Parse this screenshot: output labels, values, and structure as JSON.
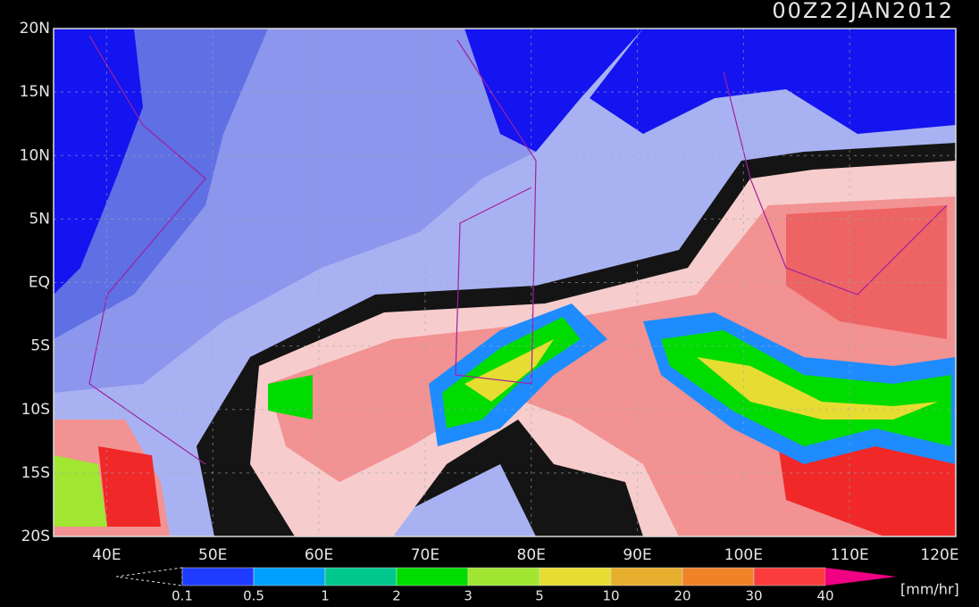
{
  "header": {
    "timestamp": "00Z22JAN2012"
  },
  "axes": {
    "lat_labels": [
      "20N",
      "15N",
      "10N",
      "5N",
      "EQ",
      "5S",
      "10S",
      "15S",
      "20S"
    ],
    "lon_labels": [
      "40E",
      "50E",
      "60E",
      "70E",
      "80E",
      "90E",
      "100E",
      "110E",
      "120E"
    ]
  },
  "legend": {
    "levels": [
      "0.1",
      "0.5",
      "1",
      "2",
      "3",
      "5",
      "10",
      "20",
      "30",
      "40"
    ],
    "colors": [
      "#1e3cff",
      "#00a0ff",
      "#00c88c",
      "#00dc00",
      "#a0e632",
      "#e6dc32",
      "#e6af2d",
      "#f08228",
      "#fa3c3c",
      "#f00082"
    ],
    "unit": "[mm/hr]"
  }
}
